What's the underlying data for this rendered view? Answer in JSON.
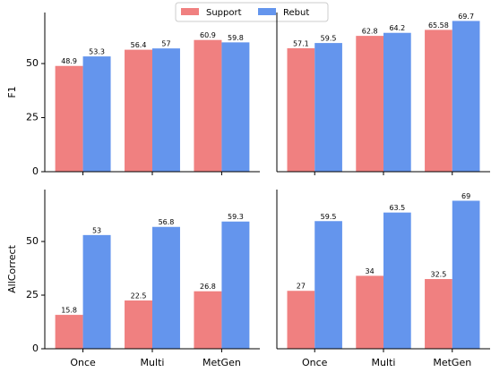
{
  "chart_data": [
    {
      "type": "bar",
      "ylabel": "F1",
      "categories": [
        null,
        null,
        null
      ],
      "series": [
        {
          "name": "Support",
          "color": "#f08080",
          "values": [
            48.9,
            56.4,
            60.9
          ]
        },
        {
          "name": "Rebut",
          "color": "#6495ed",
          "values": [
            53.3,
            57,
            59.8
          ]
        }
      ],
      "ylim": [
        0,
        73.6
      ],
      "yticks": [
        0,
        25,
        50
      ]
    },
    {
      "type": "bar",
      "categories": [
        null,
        null,
        null
      ],
      "series": [
        {
          "name": "Support",
          "color": "#f08080",
          "values": [
            57.1,
            62.8,
            65.58
          ]
        },
        {
          "name": "Rebut",
          "color": "#6495ed",
          "values": [
            59.5,
            64.2,
            69.7
          ]
        }
      ],
      "ylim": [
        0,
        73.6
      ]
    },
    {
      "type": "bar",
      "ylabel": "AllCorrect",
      "categories": [
        "Once",
        "Multi",
        "MetGen"
      ],
      "series": [
        {
          "name": "Support",
          "color": "#f08080",
          "values": [
            15.8,
            22.5,
            26.8
          ]
        },
        {
          "name": "Rebut",
          "color": "#6495ed",
          "values": [
            53,
            56.8,
            59.3
          ]
        }
      ],
      "ylim": [
        0,
        74.2
      ],
      "yticks": [
        0,
        25,
        50
      ]
    },
    {
      "type": "bar",
      "categories": [
        "Once",
        "Multi",
        "MetGen"
      ],
      "series": [
        {
          "name": "Support",
          "color": "#f08080",
          "values": [
            27,
            34,
            32.5
          ]
        },
        {
          "name": "Rebut",
          "color": "#6495ed",
          "values": [
            59.5,
            63.5,
            69
          ]
        }
      ],
      "ylim": [
        0,
        74.2
      ]
    }
  ]
}
